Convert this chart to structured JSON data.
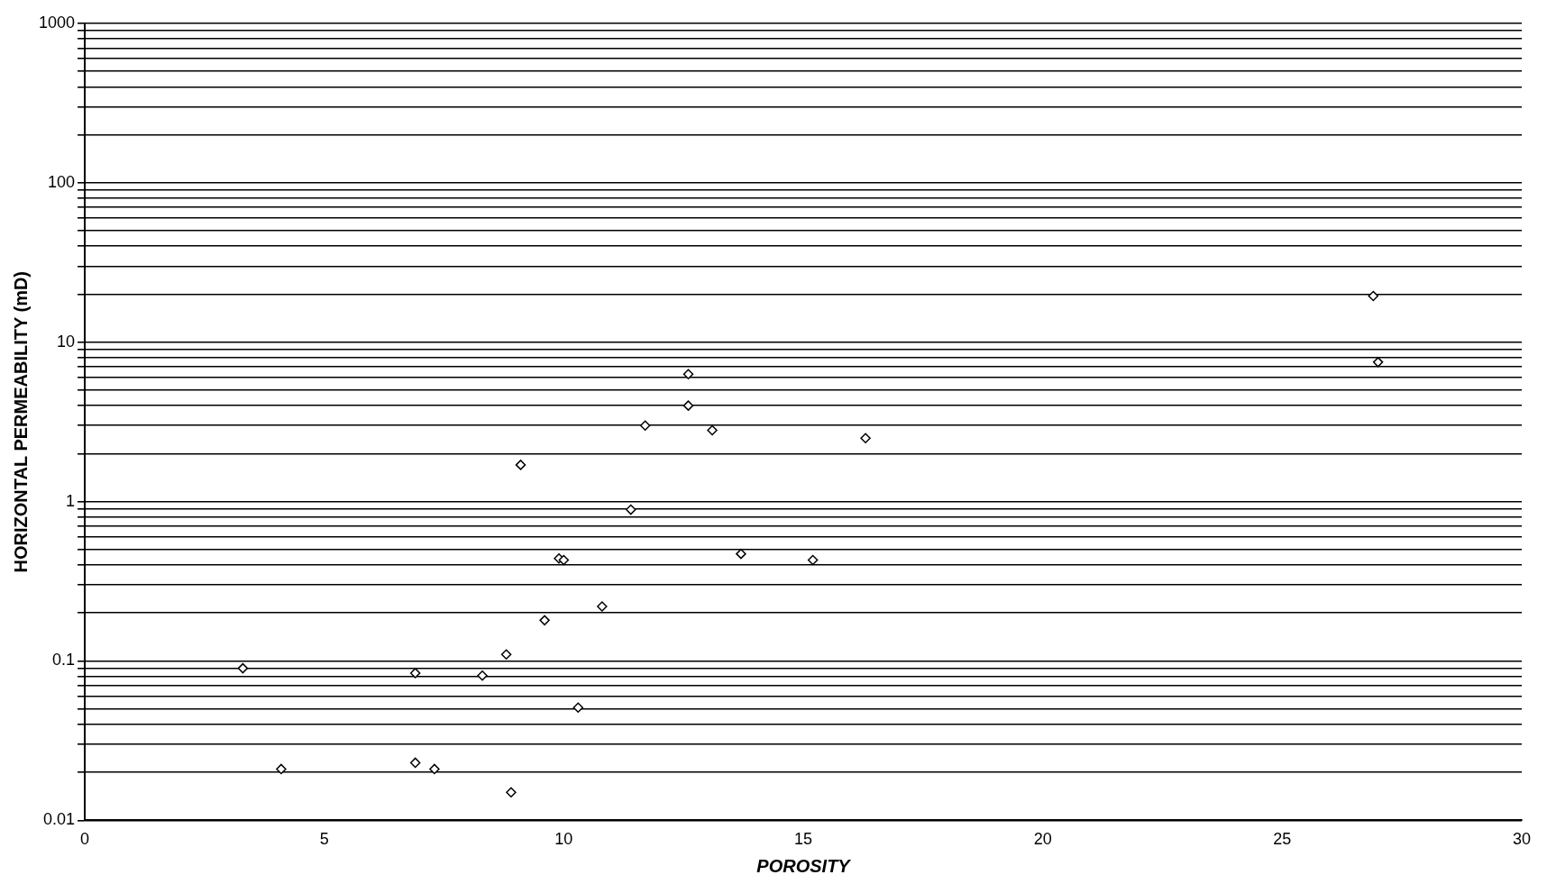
{
  "chart_data": {
    "type": "scatter",
    "xlabel": "POROSITY",
    "ylabel": "HORIZONTAL PERMEABILITY (mD)",
    "log": "y",
    "grid": "y",
    "marker": "diamond",
    "legend": false,
    "xlim": [
      0,
      30
    ],
    "xticks": [
      0,
      5,
      10,
      15,
      20,
      25,
      30
    ],
    "ylim": [
      0.01,
      1000
    ],
    "yticks": [
      0.01,
      {
        "value": 0.02,
        "label": null
      },
      {
        "value": 0.03,
        "label": null
      },
      {
        "value": 0.04,
        "label": null
      },
      {
        "value": 0.05,
        "label": null
      },
      {
        "value": 0.06,
        "label": null
      },
      {
        "value": 0.07,
        "label": null
      },
      {
        "value": 0.08,
        "label": null
      },
      {
        "value": 0.09,
        "label": null
      },
      0.1,
      {
        "value": 0.2,
        "label": null
      },
      {
        "value": 0.3,
        "label": null
      },
      {
        "value": 0.4,
        "label": null
      },
      {
        "value": 0.5,
        "label": null
      },
      {
        "value": 0.6,
        "label": null
      },
      {
        "value": 0.7,
        "label": null
      },
      {
        "value": 0.8,
        "label": null
      },
      {
        "value": 0.9,
        "label": null
      },
      1,
      {
        "value": 2,
        "label": null
      },
      {
        "value": 3,
        "label": null
      },
      {
        "value": 4,
        "label": null
      },
      {
        "value": 5,
        "label": null
      },
      {
        "value": 6,
        "label": null
      },
      {
        "value": 7,
        "label": null
      },
      {
        "value": 8,
        "label": null
      },
      {
        "value": 9,
        "label": null
      },
      10,
      {
        "value": 20,
        "label": null
      },
      {
        "value": 30,
        "label": null
      },
      {
        "value": 40,
        "label": null
      },
      {
        "value": 50,
        "label": null
      },
      {
        "value": 60,
        "label": null
      },
      {
        "value": 70,
        "label": null
      },
      {
        "value": 80,
        "label": null
      },
      {
        "value": 90,
        "label": null
      },
      100,
      {
        "value": 200,
        "label": null
      },
      {
        "value": 300,
        "label": null
      },
      {
        "value": 400,
        "label": null
      },
      {
        "value": 500,
        "label": null
      },
      {
        "value": 600,
        "label": null
      },
      {
        "value": 700,
        "label": null
      },
      {
        "value": 800,
        "label": null
      },
      {
        "value": 900,
        "label": null
      },
      1000
    ],
    "series": [
      {
        "color": "#000000",
        "x": [
          26.9,
          27.0,
          12.6,
          12.6,
          11.7,
          13.1,
          16.3,
          9.1,
          11.4,
          9.9,
          10.0,
          13.7,
          15.2,
          10.8,
          9.6,
          8.8,
          3.3,
          6.9,
          8.3,
          10.3,
          4.1,
          6.9,
          7.3,
          8.9
        ],
        "values": [
          19.5,
          7.5,
          6.3,
          4.0,
          3.0,
          2.8,
          2.5,
          1.7,
          0.89,
          0.44,
          0.43,
          0.47,
          0.43,
          0.22,
          0.18,
          0.11,
          0.09,
          0.084,
          0.081,
          0.051,
          0.021,
          0.023,
          0.021,
          0.015
        ]
      }
    ]
  }
}
